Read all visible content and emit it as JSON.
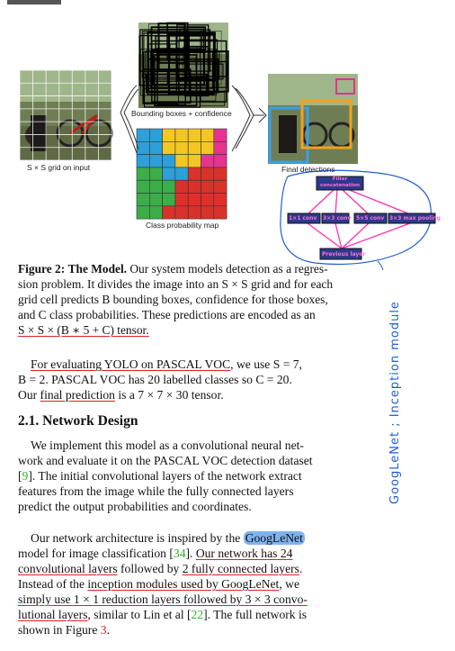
{
  "figure": {
    "captions": {
      "grid": "S × S grid on input",
      "boxes": "Bounding boxes + confidence",
      "classmap": "Class probability map",
      "final": "Final detections"
    },
    "title_label": "Figure 2:",
    "title_bold": "The Model.",
    "caption_line1": "Our system models detection as a regres-",
    "caption_line2": "sion problem. It divides the image into an S × S grid and for each",
    "caption_line3": "grid cell predicts B bounding boxes, confidence for those boxes,",
    "caption_line4": "and C class probabilities. These predictions are encoded as an",
    "caption_line5": "S × S × (B ∗ 5 + C) tensor."
  },
  "voc_paragraph": {
    "line1_ul": "For evaluating YOLO on PASCAL VOC",
    "line1_rest": ", we use S = 7,",
    "line2": "B = 2. PASCAL VOC has 20 labelled classes so C = 20.",
    "line3_pre": "Our ",
    "line3_ul": "final prediction",
    "line3_rest": " is a 7 × 7 × 30 tensor."
  },
  "section": {
    "heading": "2.1. Network Design"
  },
  "design_paragraph": {
    "lines": [
      "We implement this model as a convolutional neural net-",
      "work and evaluate it on the PASCAL VOC detection dataset",
      "].  The initial convolutional layers of the network extract",
      "features from the image while the fully connected layers",
      "predict the output probabilities and coordinates."
    ],
    "ref": "9"
  },
  "arch_paragraph": {
    "l1_pre": "Our network architecture is inspired by the ",
    "l1_hl": "GoogLeNet",
    "l2_pre": "model for image classification [",
    "ref34": "34",
    "l2_mid": "].  ",
    "l2_ul": "Our network has 24",
    "l3_ul": "convolutional layers",
    "l3_mid": " followed by ",
    "l3_ul2": "2 fully connected layers",
    "l3_end": ".",
    "l4_pre": "Instead of the ",
    "l4_ul": "inception modules used by GoogLeNet",
    "l4_end": ", we",
    "l5_ul": "simply use 1 × 1 reduction layers followed by 3 × 3 convo-",
    "l6_ul": "lutional layers",
    "l6_mid": ", similar to Lin et al [",
    "ref22": "22",
    "l6_end": "].  The full network is",
    "l7_pre": "shown in Figure ",
    "ref3": "3",
    "l7_end": "."
  },
  "annotation": {
    "boxes": [
      "Filter concatenation",
      "1×1 conv",
      "3×3 conv",
      "5×5 conv",
      "3×3 max pooling",
      "Previous layer"
    ],
    "handwriting": "GoogLeNet ; Inception module"
  },
  "colors": {
    "ink_red": "#e02020",
    "ink_blue": "#1f5fd0",
    "ink_pink": "#ff2fb5",
    "box_fill": "#2a3a8c",
    "ref_green": "#2db22d"
  }
}
